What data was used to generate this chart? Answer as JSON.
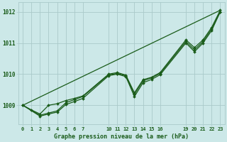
{
  "title": "Graphe pression niveau de la mer (hPa)",
  "bg_color": "#cce8e8",
  "grid_color": "#aacaca",
  "line_color": "#1a5c1a",
  "marker_color": "#1a5c1a",
  "xlim": [
    -0.5,
    23.5
  ],
  "ylim": [
    1008.4,
    1012.3
  ],
  "yticks": [
    1009,
    1010,
    1011,
    1012
  ],
  "xticks": [
    0,
    1,
    2,
    3,
    4,
    5,
    6,
    7,
    10,
    11,
    12,
    13,
    14,
    15,
    16,
    19,
    20,
    21,
    22,
    23
  ],
  "xtick_labels": [
    "0",
    "1",
    "2",
    "3",
    "4",
    "5",
    "6",
    "7",
    "10",
    "11",
    "12",
    "13",
    "14",
    "15",
    "16",
    "19",
    "20",
    "21",
    "22",
    "23"
  ],
  "series1": [
    [
      0,
      1009.0
    ],
    [
      1,
      1008.85
    ],
    [
      2,
      1008.72
    ],
    [
      3,
      1009.0
    ],
    [
      4,
      1009.05
    ],
    [
      5,
      1009.15
    ],
    [
      6,
      1009.22
    ],
    [
      7,
      1009.3
    ],
    [
      10,
      1010.0
    ],
    [
      11,
      1010.05
    ],
    [
      12,
      1009.97
    ],
    [
      13,
      1009.4
    ],
    [
      14,
      1009.82
    ],
    [
      15,
      1009.9
    ],
    [
      16,
      1010.05
    ],
    [
      19,
      1011.1
    ],
    [
      20,
      1010.85
    ],
    [
      21,
      1011.1
    ],
    [
      22,
      1011.5
    ],
    [
      23,
      1012.05
    ]
  ],
  "series2": [
    [
      0,
      1009.0
    ],
    [
      2,
      1008.68
    ],
    [
      3,
      1008.75
    ],
    [
      4,
      1008.82
    ],
    [
      5,
      1009.08
    ],
    [
      6,
      1009.18
    ],
    [
      7,
      1009.28
    ],
    [
      10,
      1009.98
    ],
    [
      11,
      1010.02
    ],
    [
      12,
      1009.95
    ],
    [
      13,
      1009.35
    ],
    [
      14,
      1009.78
    ],
    [
      15,
      1009.88
    ],
    [
      16,
      1010.02
    ],
    [
      19,
      1011.05
    ],
    [
      20,
      1010.78
    ],
    [
      21,
      1011.05
    ],
    [
      22,
      1011.45
    ],
    [
      23,
      1012.0
    ]
  ],
  "series3_straight": [
    [
      0,
      1009.0
    ],
    [
      23,
      1012.05
    ]
  ],
  "series4": [
    [
      0,
      1009.0
    ],
    [
      2,
      1008.65
    ],
    [
      3,
      1008.72
    ],
    [
      4,
      1008.78
    ],
    [
      5,
      1009.02
    ],
    [
      6,
      1009.12
    ],
    [
      7,
      1009.22
    ],
    [
      10,
      1009.95
    ],
    [
      11,
      1010.0
    ],
    [
      12,
      1009.92
    ],
    [
      13,
      1009.28
    ],
    [
      14,
      1009.72
    ],
    [
      15,
      1009.83
    ],
    [
      16,
      1009.98
    ],
    [
      19,
      1011.0
    ],
    [
      20,
      1010.72
    ],
    [
      21,
      1011.0
    ],
    [
      22,
      1011.4
    ],
    [
      23,
      1012.0
    ]
  ]
}
